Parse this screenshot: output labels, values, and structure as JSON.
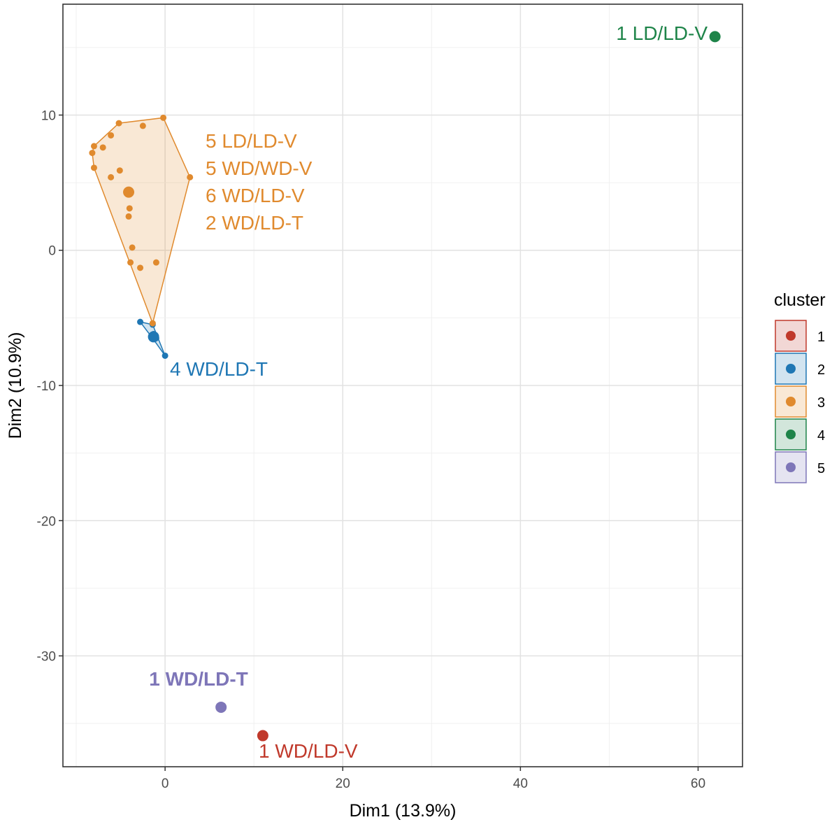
{
  "chart_data": {
    "type": "scatter",
    "title": "",
    "xlabel": "Dim1 (13.9%)",
    "ylabel": "Dim2 (10.9%)",
    "xlim": [
      -11.5,
      65
    ],
    "ylim": [
      -38.2,
      18.2
    ],
    "xticks": [
      0,
      20,
      40,
      60
    ],
    "yticks": [
      10,
      0,
      -10,
      -20,
      -30
    ],
    "grid": true,
    "legend": {
      "title": "cluster",
      "placement": "right",
      "entries": [
        "1",
        "2",
        "3",
        "4",
        "5"
      ]
    },
    "colors": {
      "1": "#C0392B",
      "2": "#1F77B4",
      "3": "#E08A2E",
      "4": "#1E8449",
      "5": "#7E76B8"
    },
    "series": [
      {
        "name": "1",
        "points": [
          [
            11,
            -35.9
          ]
        ],
        "large_points": [
          [
            11,
            -35.9
          ]
        ],
        "hull": [],
        "labels": [
          "1 WD/LD-V"
        ]
      },
      {
        "name": "2",
        "points": [
          [
            -2.8,
            -5.3
          ],
          [
            -1.4,
            -5.5
          ],
          [
            -1.3,
            -6.2
          ],
          [
            -1.0,
            -6.5
          ],
          [
            0.0,
            -7.8
          ]
        ],
        "large_points": [
          [
            -1.3,
            -6.4
          ]
        ],
        "hull": [
          [
            -2.8,
            -5.3
          ],
          [
            -1.4,
            -5.5
          ],
          [
            0.0,
            -7.8
          ],
          [
            -1.3,
            -6.6
          ]
        ],
        "labels": [
          "4 WD/LD-T"
        ]
      },
      {
        "name": "3",
        "points": [
          [
            -8.0,
            7.7
          ],
          [
            -8.2,
            7.2
          ],
          [
            -8.0,
            6.1
          ],
          [
            -7.0,
            7.6
          ],
          [
            -6.1,
            8.5
          ],
          [
            -5.2,
            9.4
          ],
          [
            -2.5,
            9.2
          ],
          [
            -0.2,
            9.8
          ],
          [
            2.8,
            5.4
          ],
          [
            -6.1,
            5.4
          ],
          [
            -5.1,
            5.9
          ],
          [
            -4.1,
            4.3
          ],
          [
            -4.0,
            3.1
          ],
          [
            -4.1,
            2.5
          ],
          [
            -3.7,
            0.2
          ],
          [
            -3.9,
            -0.9
          ],
          [
            -2.8,
            -1.3
          ],
          [
            -1.0,
            -0.9
          ],
          [
            -1.4,
            -5.4
          ]
        ],
        "large_points": [
          [
            -4.1,
            4.3
          ]
        ],
        "hull": [
          [
            -8.0,
            7.7
          ],
          [
            -5.2,
            9.4
          ],
          [
            -0.2,
            9.8
          ],
          [
            2.8,
            5.4
          ],
          [
            -1.4,
            -5.4
          ],
          [
            -8.0,
            6.1
          ],
          [
            -8.2,
            7.2
          ]
        ],
        "labels": [
          "5 LD/LD-V",
          "5 WD/WD-V",
          "6 WD/LD-V",
          "2 WD/LD-T"
        ]
      },
      {
        "name": "4",
        "points": [
          [
            61.9,
            15.8
          ]
        ],
        "large_points": [
          [
            61.9,
            15.8
          ]
        ],
        "hull": [],
        "labels": [
          "1 LD/LD-V"
        ]
      },
      {
        "name": "5",
        "points": [
          [
            6.3,
            -33.8
          ]
        ],
        "large_points": [
          [
            6.3,
            -33.8
          ]
        ],
        "hull": [],
        "labels": [
          "1 WD/LD-T"
        ]
      }
    ]
  }
}
